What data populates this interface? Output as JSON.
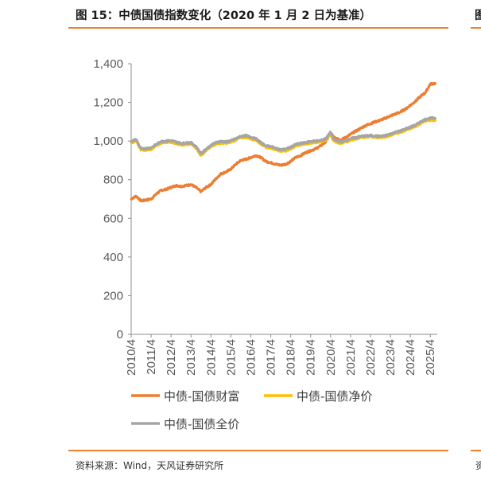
{
  "figure": {
    "title": "图 15：中债国债指数变化（2020 年 1 月 2 日为基准）",
    "source": "资料来源：Wind，天风证券研究所",
    "next_title_fragment": "图",
    "next_source_fragment": "资"
  },
  "chart_data": {
    "type": "line",
    "title": "",
    "xlabel": "",
    "ylabel": "",
    "ylim": [
      0,
      1400
    ],
    "xlim": [
      2010.25,
      2025.6
    ],
    "yticks": [
      "0",
      "200",
      "400",
      "600",
      "800",
      "1,000",
      "1,200",
      "1,400"
    ],
    "ytick_values": [
      0,
      200,
      400,
      600,
      800,
      1000,
      1200,
      1400
    ],
    "xticks": [
      "2010/4",
      "2011/4",
      "2012/4",
      "2013/4",
      "2014/4",
      "2015/4",
      "2016/4",
      "2017/4",
      "2018/4",
      "2019/4",
      "2020/4",
      "2021/4",
      "2022/4",
      "2023/4",
      "2024/4",
      "2025/4"
    ],
    "xtick_values": [
      2010.25,
      2011.25,
      2012.25,
      2013.25,
      2014.25,
      2015.25,
      2016.25,
      2017.25,
      2018.25,
      2019.25,
      2020.25,
      2021.25,
      2022.25,
      2023.25,
      2024.25,
      2025.25
    ],
    "grid": false,
    "legend": "bottom",
    "series": [
      {
        "name": "中债-国债财富",
        "color": "#ed7d31",
        "x": [
          2010.25,
          2010.5,
          2010.75,
          2011.0,
          2011.25,
          2011.5,
          2011.75,
          2012.0,
          2012.25,
          2012.5,
          2012.75,
          2013.0,
          2013.25,
          2013.5,
          2013.75,
          2014.0,
          2014.25,
          2014.5,
          2014.75,
          2015.0,
          2015.25,
          2015.5,
          2015.75,
          2016.0,
          2016.25,
          2016.5,
          2016.75,
          2017.0,
          2017.25,
          2017.5,
          2017.75,
          2018.0,
          2018.25,
          2018.5,
          2018.75,
          2019.0,
          2019.25,
          2019.5,
          2019.75,
          2020.0,
          2020.25,
          2020.4,
          2020.75,
          2021.0,
          2021.25,
          2021.5,
          2021.75,
          2022.0,
          2022.25,
          2022.5,
          2022.75,
          2023.0,
          2023.25,
          2023.5,
          2023.75,
          2024.0,
          2024.25,
          2024.5,
          2024.75,
          2025.0,
          2025.25,
          2025.5
        ],
        "y": [
          700,
          715,
          690,
          695,
          700,
          725,
          745,
          750,
          760,
          770,
          765,
          770,
          775,
          760,
          738,
          760,
          775,
          805,
          830,
          840,
          855,
          880,
          900,
          905,
          915,
          925,
          915,
          895,
          888,
          880,
          875,
          880,
          895,
          915,
          925,
          940,
          950,
          960,
          975,
          995,
          1040,
          1025,
          1005,
          1018,
          1035,
          1050,
          1065,
          1080,
          1090,
          1100,
          1108,
          1118,
          1130,
          1140,
          1150,
          1165,
          1185,
          1205,
          1230,
          1250,
          1295,
          1298
        ]
      },
      {
        "name": "中债-国债净价",
        "color": "#ffc000",
        "x": [
          2010.25,
          2010.5,
          2010.75,
          2011.0,
          2011.25,
          2011.5,
          2011.75,
          2012.0,
          2012.25,
          2012.5,
          2012.75,
          2013.0,
          2013.25,
          2013.5,
          2013.75,
          2014.0,
          2014.25,
          2014.5,
          2014.75,
          2015.0,
          2015.25,
          2015.5,
          2015.75,
          2016.0,
          2016.25,
          2016.5,
          2016.75,
          2017.0,
          2017.25,
          2017.5,
          2017.75,
          2018.0,
          2018.25,
          2018.5,
          2018.75,
          2019.0,
          2019.25,
          2019.5,
          2019.75,
          2020.0,
          2020.25,
          2020.4,
          2020.75,
          2021.0,
          2021.25,
          2021.5,
          2021.75,
          2022.0,
          2022.25,
          2022.5,
          2022.75,
          2023.0,
          2023.25,
          2023.5,
          2023.75,
          2024.0,
          2024.25,
          2024.5,
          2024.75,
          2025.0,
          2025.25,
          2025.5
        ],
        "y": [
          990,
          1000,
          952,
          955,
          958,
          975,
          990,
          993,
          995,
          988,
          980,
          982,
          985,
          965,
          925,
          950,
          970,
          985,
          990,
          988,
          995,
          1005,
          1018,
          1020,
          1012,
          1005,
          985,
          968,
          965,
          955,
          948,
          950,
          960,
          975,
          980,
          985,
          990,
          992,
          995,
          1005,
          1035,
          1000,
          988,
          995,
          1005,
          1012,
          1018,
          1020,
          1022,
          1020,
          1018,
          1022,
          1030,
          1040,
          1045,
          1055,
          1065,
          1075,
          1090,
          1105,
          1108,
          1108
        ]
      },
      {
        "name": "中债-国债全价",
        "color": "#a5a5a5",
        "x": [
          2010.25,
          2010.5,
          2010.75,
          2011.0,
          2011.25,
          2011.5,
          2011.75,
          2012.0,
          2012.25,
          2012.5,
          2012.75,
          2013.0,
          2013.25,
          2013.5,
          2013.75,
          2014.0,
          2014.25,
          2014.5,
          2014.75,
          2015.0,
          2015.25,
          2015.5,
          2015.75,
          2016.0,
          2016.25,
          2016.5,
          2016.75,
          2017.0,
          2017.25,
          2017.5,
          2017.75,
          2018.0,
          2018.25,
          2018.5,
          2018.75,
          2019.0,
          2019.25,
          2019.5,
          2019.75,
          2020.0,
          2020.25,
          2020.4,
          2020.75,
          2021.0,
          2021.25,
          2021.5,
          2021.75,
          2022.0,
          2022.25,
          2022.5,
          2022.75,
          2023.0,
          2023.25,
          2023.5,
          2023.75,
          2024.0,
          2024.25,
          2024.5,
          2024.75,
          2025.0,
          2025.25,
          2025.5
        ],
        "y": [
          998,
          1008,
          958,
          962,
          965,
          982,
          998,
          1000,
          1002,
          995,
          988,
          990,
          992,
          972,
          935,
          958,
          978,
          992,
          998,
          995,
          1002,
          1012,
          1025,
          1028,
          1020,
          1012,
          992,
          975,
          972,
          962,
          955,
          958,
          968,
          982,
          988,
          992,
          998,
          1000,
          1002,
          1012,
          1045,
          1008,
          995,
          1002,
          1012,
          1018,
          1024,
          1026,
          1028,
          1026,
          1024,
          1028,
          1036,
          1046,
          1052,
          1062,
          1072,
          1082,
          1098,
          1112,
          1118,
          1118
        ]
      }
    ]
  }
}
